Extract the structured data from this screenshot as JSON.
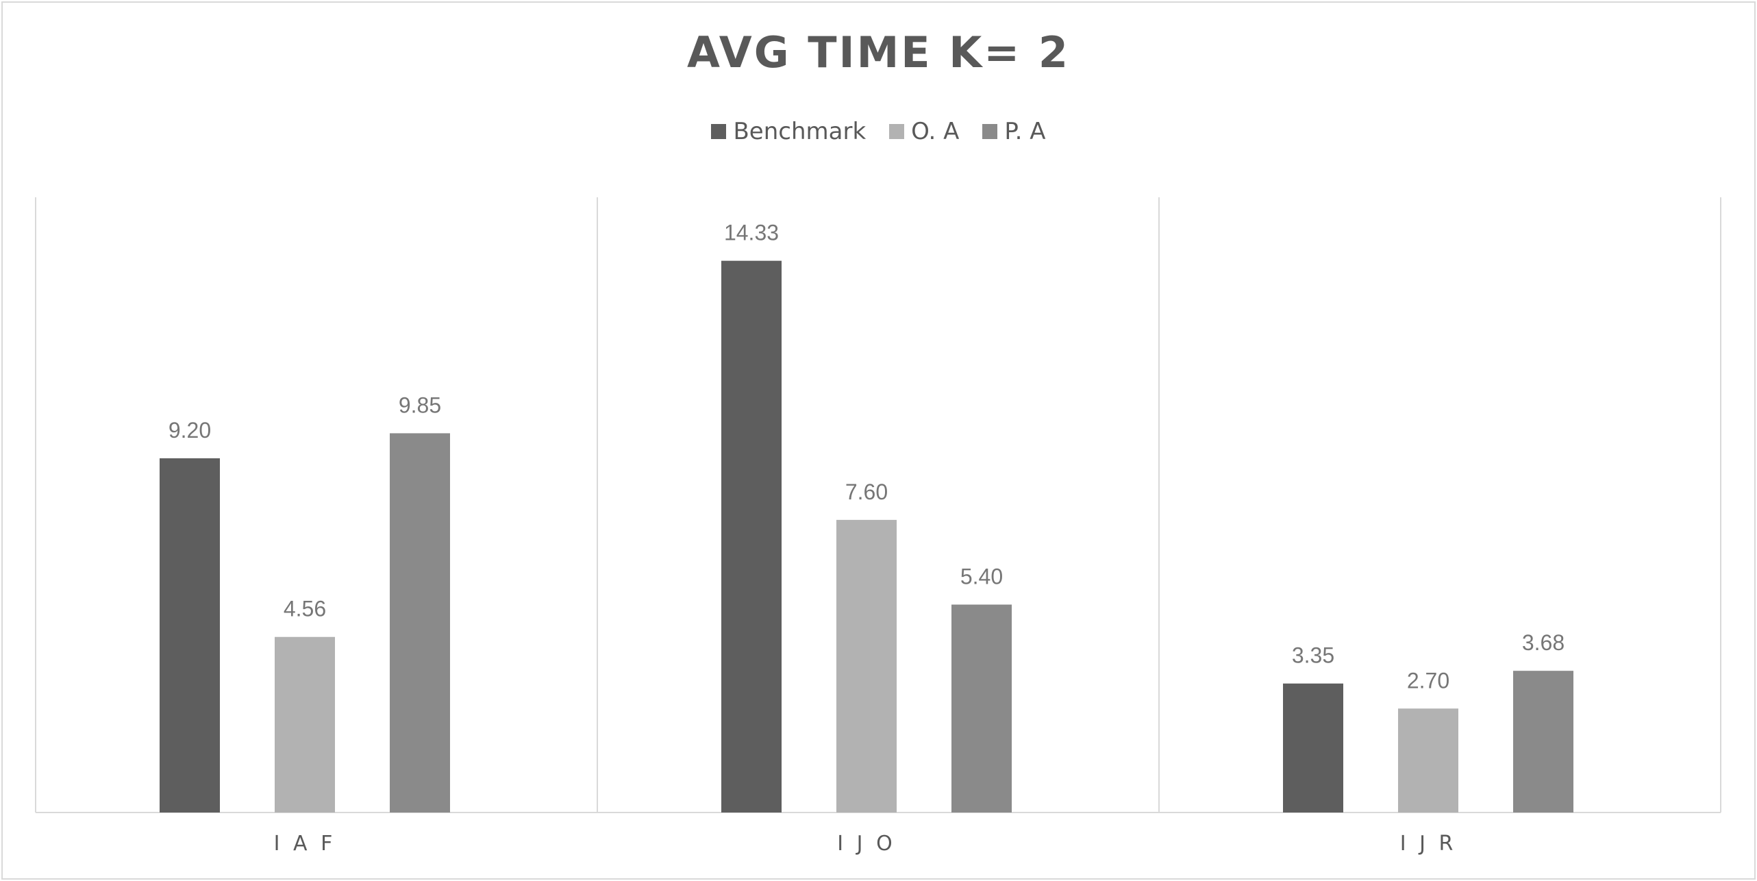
{
  "chart_data": {
    "type": "bar",
    "title": "AVG TIME K= 2",
    "xlabel": "",
    "ylabel": "",
    "categories": [
      "IAF",
      "IJO",
      "IJR"
    ],
    "category_labels": [
      "I A F",
      "I J O",
      "I J R"
    ],
    "series": [
      {
        "name": "Benchmark",
        "values": [
          9.2,
          14.33,
          3.35
        ],
        "labels": [
          "9.20",
          "14.33",
          "3.35"
        ],
        "color": "#5e5e5e"
      },
      {
        "name": "O. A",
        "values": [
          4.56,
          7.6,
          2.7
        ],
        "labels": [
          "4.56",
          "7.60",
          "2.70"
        ],
        "color": "#b2b2b2"
      },
      {
        "name": "P. A",
        "values": [
          9.85,
          5.4,
          3.68
        ],
        "labels": [
          "9.85",
          "5.40",
          "3.68"
        ],
        "color": "#8a8a8a"
      }
    ],
    "ylim": [
      0,
      16
    ],
    "grid": false,
    "legend_position": "top-center",
    "category_dividers": true,
    "colors": {
      "axis": "#d9d9d9",
      "text": "#595959",
      "data_label": "#767676"
    }
  }
}
